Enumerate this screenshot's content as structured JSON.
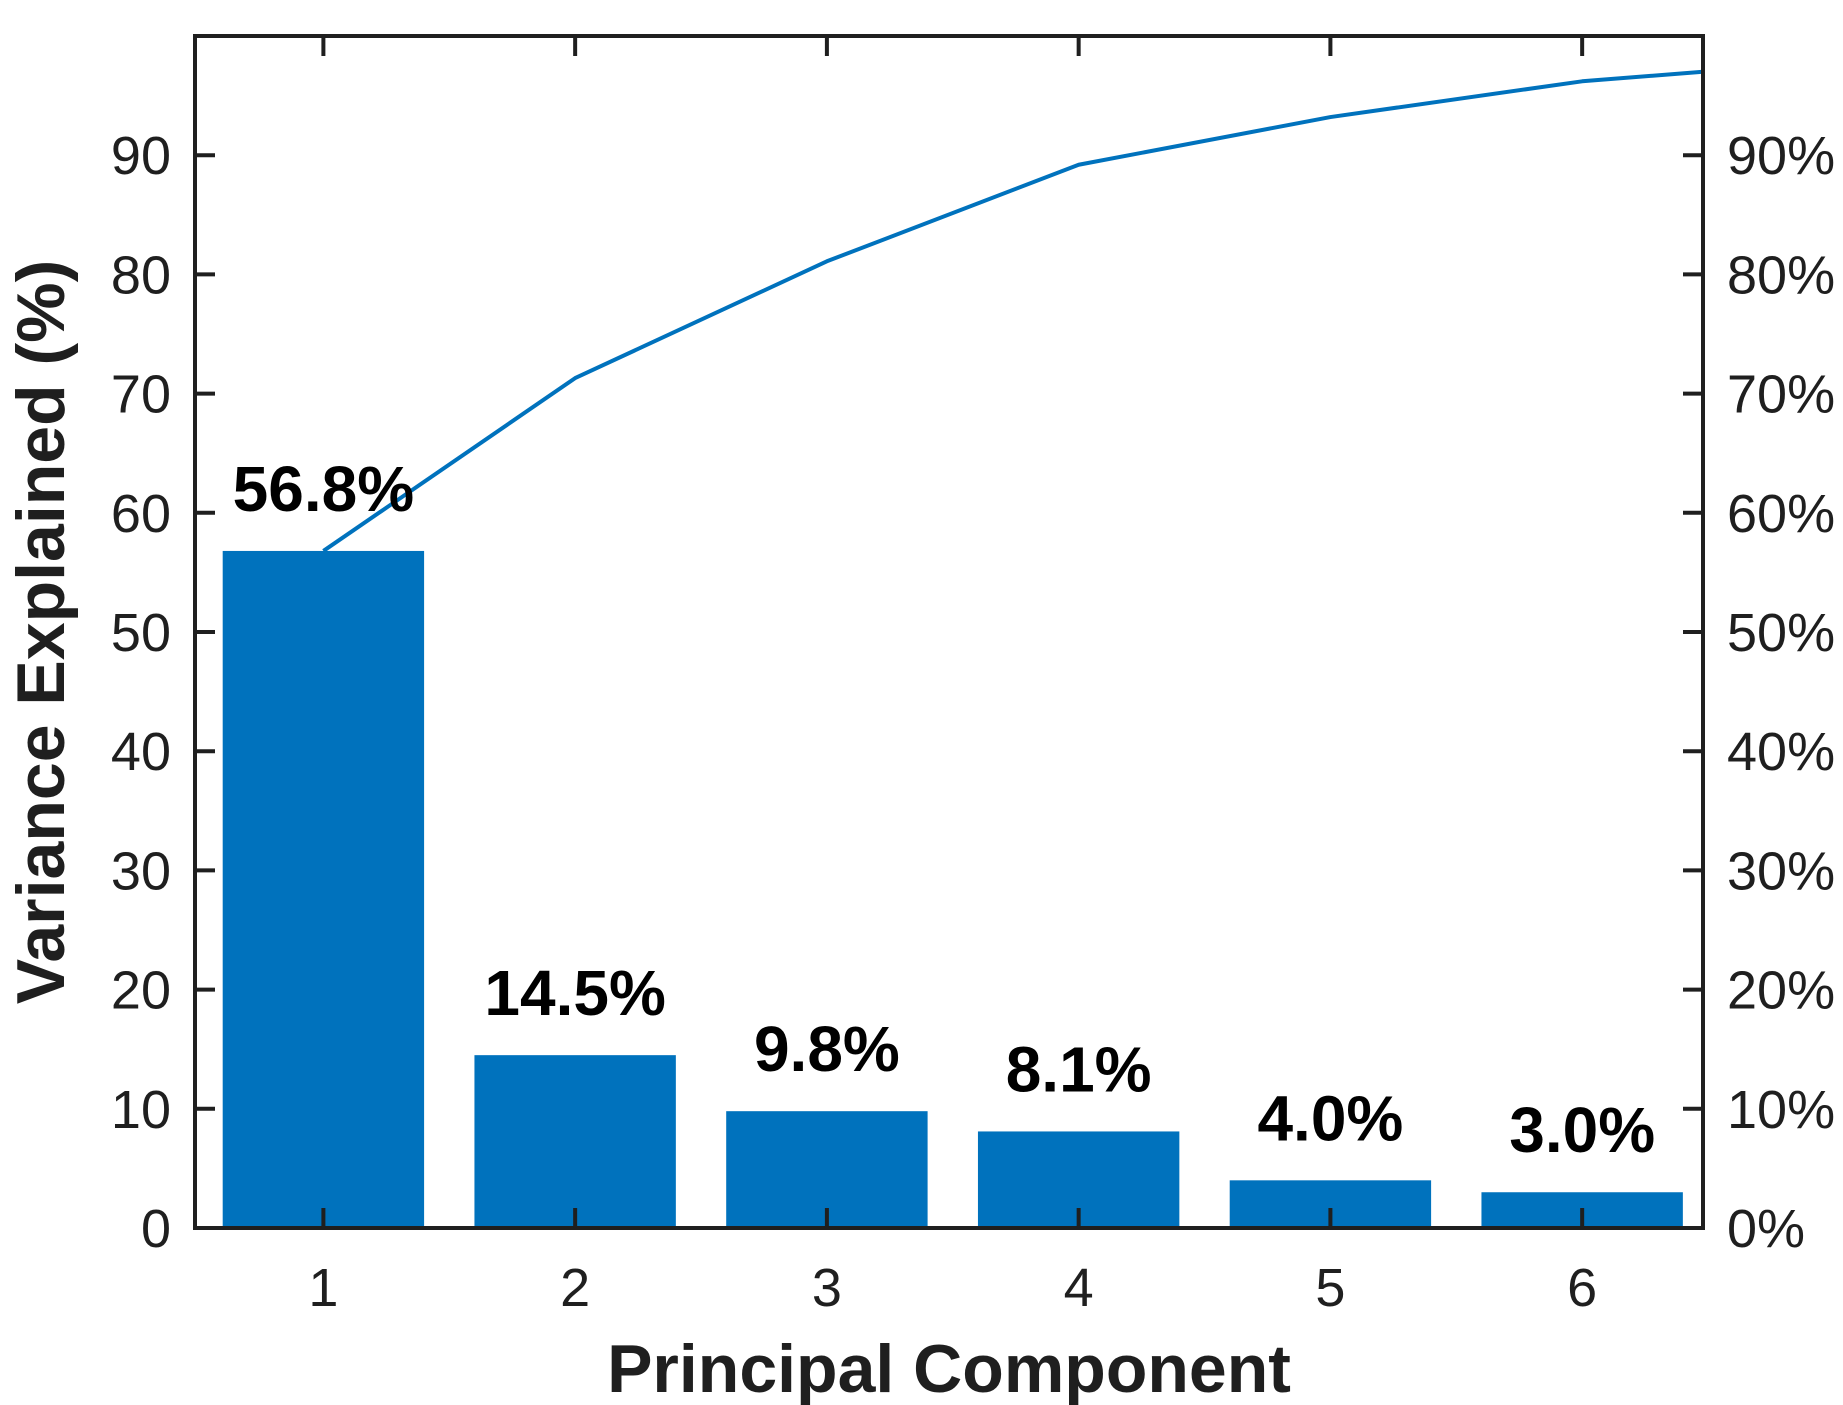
{
  "chart_data": {
    "type": "bar",
    "subtype": "pareto",
    "title": "",
    "xlabel": "Principal Component",
    "ylabel": "Variance Explained (%)",
    "categories": [
      "1",
      "2",
      "3",
      "4",
      "5",
      "6"
    ],
    "series": [
      {
        "name": "variance-explained-bars",
        "type": "bar",
        "values": [
          56.8,
          14.5,
          9.8,
          8.1,
          4.0,
          3.0
        ]
      },
      {
        "name": "cumulative-variance-line",
        "type": "line",
        "values": [
          56.8,
          71.3,
          81.1,
          89.2,
          93.2,
          96.2
        ],
        "right_edge_point": {
          "x": 6.48,
          "value": 97.0
        }
      }
    ],
    "bar_value_labels": [
      "56.8%",
      "14.5%",
      "9.8%",
      "8.1%",
      "4.0%",
      "3.0%"
    ],
    "left_axis_tick_values": [
      0,
      10,
      20,
      30,
      40,
      50,
      60,
      70,
      80,
      90
    ],
    "left_axis_tick_labels": [
      "0",
      "10",
      "20",
      "30",
      "40",
      "50",
      "60",
      "70",
      "80",
      "90"
    ],
    "right_axis_tick_labels": [
      "0%",
      "10%",
      "20%",
      "30%",
      "40%",
      "50%",
      "60%",
      "70%",
      "80%",
      "90%"
    ],
    "xlim": [
      0.49,
      6.48
    ],
    "ylim": [
      0,
      100
    ],
    "bar_width": 0.8,
    "grid": false,
    "legend_position": "none",
    "colors": {
      "bar": "#0072BD",
      "line": "#0072BD",
      "axis": "#1f1f1f",
      "text": "#1f1f1f",
      "background": "#FFFFFF"
    }
  }
}
